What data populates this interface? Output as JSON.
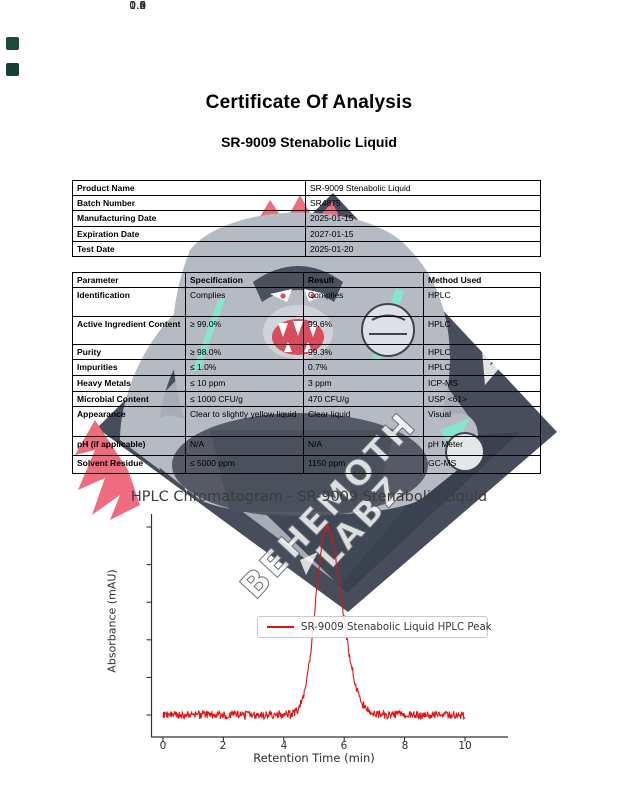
{
  "document": {
    "title": "Certificate Of Analysis",
    "subtitle": "SR-9009 Stenabolic Liquid"
  },
  "decor": {
    "corner_squares": [
      {
        "color": "#1c4a3d"
      },
      {
        "color": "#183f35"
      }
    ],
    "watermark": {
      "line1": "BEHEMOTH",
      "line2": "LABZ",
      "colors": {
        "body_gray": "#b6bac2",
        "shadow_gray": "#4a505c",
        "dark_navy": "#3a4150",
        "diamond_gray": "#a8adb5",
        "diamond_dark": "#474d5a",
        "accent_pink": "#ef6b7e",
        "accent_red": "#d94b5e",
        "accent_teal": "#85e6cd"
      }
    }
  },
  "product_table": {
    "rows": [
      {
        "label": "Product Name",
        "value": "SR-9009 Stenabolic Liquid"
      },
      {
        "label": "Batch Number",
        "value": "SR4875"
      },
      {
        "label": "Manufacturing Date",
        "value": "2025-01-15"
      },
      {
        "label": "Expiration Date",
        "value": "2027-01-15"
      },
      {
        "label": "Test Date",
        "value": "2025-01-20"
      }
    ]
  },
  "analysis_table": {
    "headers": [
      "Parameter",
      "Specification",
      "Result",
      "Method Used"
    ],
    "rows": [
      [
        "Identification",
        "Complies",
        "Complies",
        "HPLC"
      ],
      [
        "Active Ingredient Content",
        "≥ 99.0%",
        "99.6%",
        "HPLC"
      ],
      [
        "Purity",
        "≥ 98.0%",
        "99.3%",
        "HPLC"
      ],
      [
        "Impurities",
        "≤ 1.0%",
        "0.7%",
        "HPLC"
      ],
      [
        "Heavy Metals",
        "≤ 10 ppm",
        "3 ppm",
        "ICP-MS"
      ],
      [
        "Microbial Content",
        "≤ 1000 CFU/g",
        "470 CFU/g",
        "USP <61>"
      ],
      [
        "Appearance",
        "Clear to slightly yellow liquid",
        "Clear liquid",
        "Visual"
      ],
      [
        "pH (if applicable)",
        "N/A",
        "N/A",
        "pH Meter"
      ],
      [
        "Solvent Residue",
        "≤ 5000 ppm",
        "1150 ppm",
        "GC-MS"
      ]
    ]
  },
  "chart_data": {
    "type": "line",
    "title": "HPLC Chromatogram - SR-9009 Stenabolic Liquid",
    "xlabel": "Retention Time (min)",
    "ylabel": "Absorbance (mAU)",
    "xlim": [
      0,
      10
    ],
    "ylim": [
      -0.05,
      1.05
    ],
    "xticks": [
      "0",
      "2",
      "4",
      "6",
      "8",
      "10"
    ],
    "yticks": [
      "0.0",
      "0.2",
      "0.4",
      "0.6",
      "0.8",
      "1.0"
    ],
    "grid": false,
    "line_color": "#dd1414",
    "legend": {
      "position": "center",
      "entries": [
        "SR-9009 Stenabolic Liquid HPLC Peak"
      ]
    },
    "series": [
      {
        "name": "SR-9009 Stenabolic Liquid HPLC Peak",
        "model": "gaussian_peak_with_noise",
        "peak_center_min": 5.42,
        "peak_height_mau": 1.0,
        "sigma_left_min": 0.36,
        "sigma_right_min": 0.5,
        "baseline_mau": 0.0,
        "noise_amplitude_mau": 0.022,
        "x_step_min": 0.02
      }
    ]
  }
}
